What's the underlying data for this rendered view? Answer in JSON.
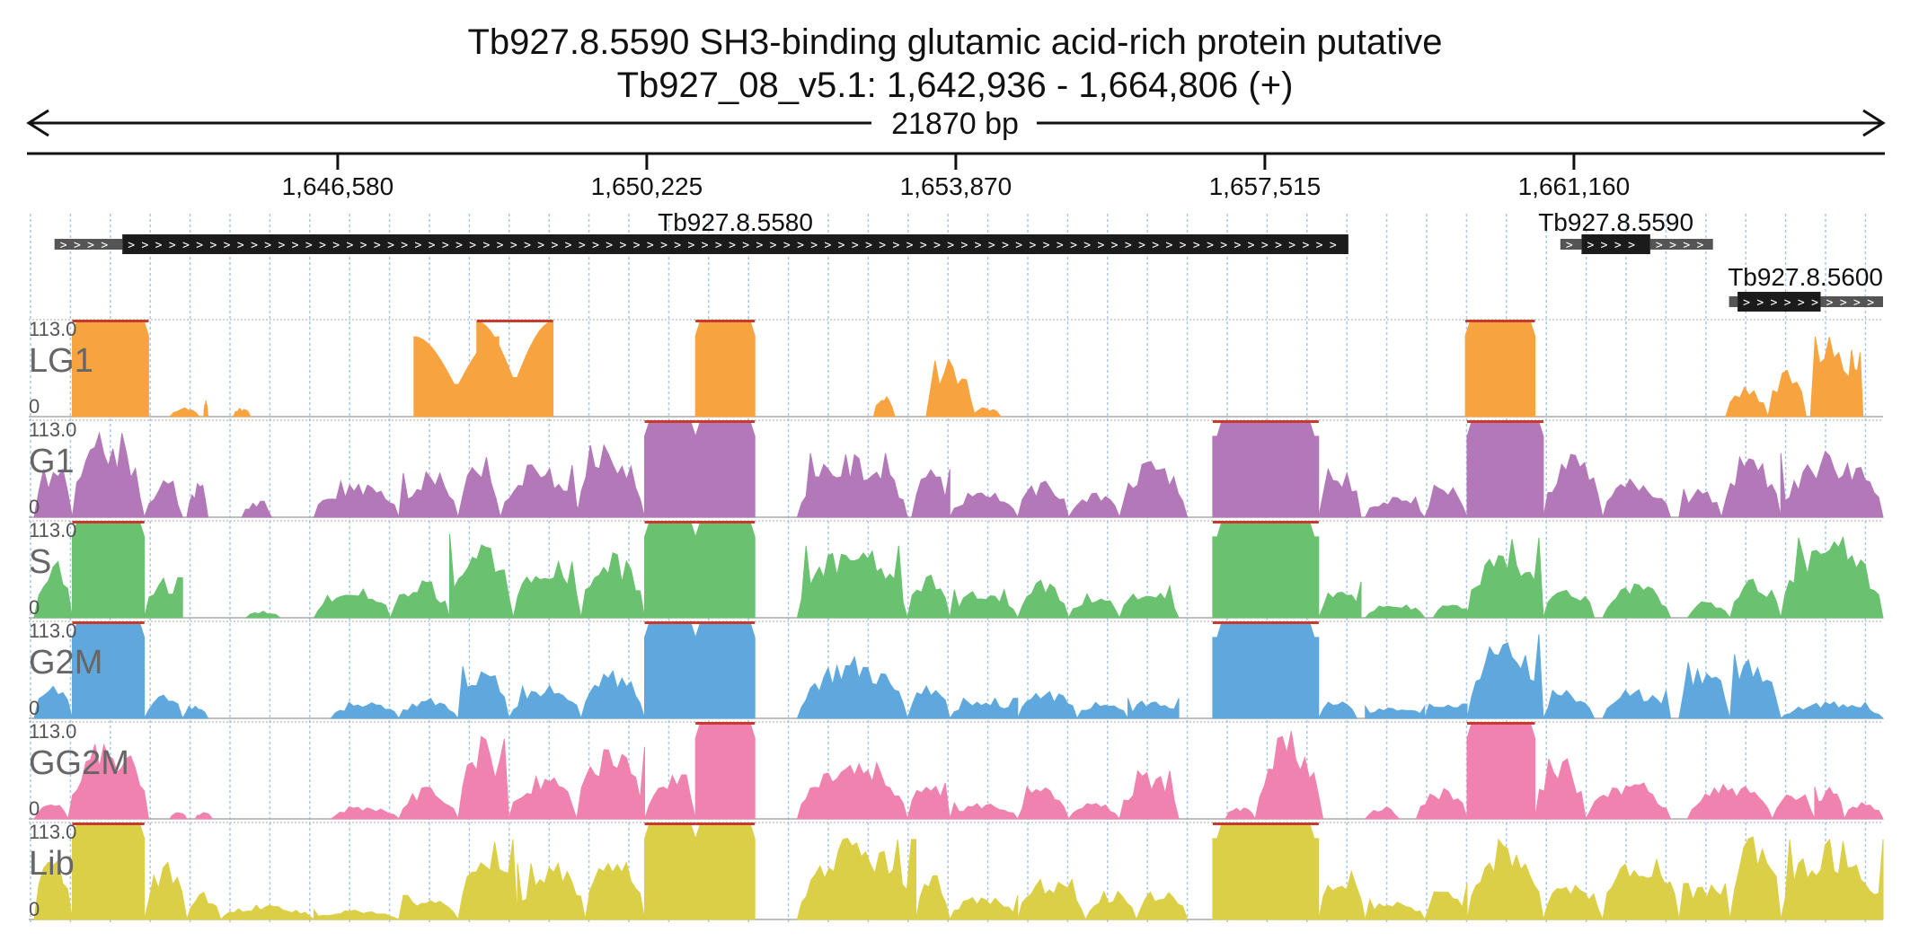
{
  "header": {
    "title_line1": "Tb927.8.5590  SH3-binding  glutamic acid-rich protein  putative",
    "title_line2": "Tb927_08_v5.1: 1,642,936 - 1,664,806 (+)",
    "span_label": "21870 bp"
  },
  "chart_data": {
    "type": "area",
    "title": "Tb927.8.5590  SH3-binding  glutamic acid-rich protein  putative",
    "subtitle": "Tb927_08_v5.1: 1,642,936 - 1,664,806 (+)",
    "xlim": [
      1642936,
      1664806
    ],
    "x_ticks": [
      {
        "value": 1646580,
        "label": "1,646,580"
      },
      {
        "value": 1650225,
        "label": "1,650,225"
      },
      {
        "value": 1653870,
        "label": "1,653,870"
      },
      {
        "value": 1657515,
        "label": "1,657,515"
      },
      {
        "value": 1661160,
        "label": "1,661,160"
      }
    ],
    "genes": [
      {
        "name": "Tb927.8.5580",
        "utr5": [
          1643240,
          1644040
        ],
        "cds": [
          1644040,
          1658500
        ],
        "utr3": null,
        "strand": "+"
      },
      {
        "name": "Tb927.8.5590",
        "utr5": [
          1661000,
          1661250
        ],
        "cds": [
          1661250,
          1662060
        ],
        "utr3": [
          1662060,
          1662800
        ],
        "strand": "+"
      },
      {
        "name": "Tb927.8.5600",
        "utr5": [
          1662990,
          1663090
        ],
        "cds": [
          1663090,
          1664070
        ],
        "utr3": [
          1664070,
          1664806
        ],
        "strand": "+"
      }
    ],
    "ylim": [
      0,
      113.0
    ],
    "y_max_label": "113.0",
    "y_min_label": "0",
    "series": [
      {
        "name": "LG1",
        "color": "#f7a440",
        "peaks": [
          {
            "s": 1643450,
            "e": 1644350,
            "v": 113
          },
          {
            "s": 1644600,
            "e": 1644950,
            "v": 11
          },
          {
            "s": 1645000,
            "e": 1645050,
            "v": 20
          },
          {
            "s": 1645350,
            "e": 1645550,
            "v": 11
          },
          {
            "s": 1647480,
            "e": 1648480,
            "v": 95,
            "shape": "dip"
          },
          {
            "s": 1648220,
            "e": 1649120,
            "v": 113,
            "shape": "dip"
          },
          {
            "s": 1650800,
            "e": 1651500,
            "v": 113
          },
          {
            "s": 1652900,
            "e": 1653150,
            "v": 26
          },
          {
            "s": 1653520,
            "e": 1654100,
            "v": 70
          },
          {
            "s": 1654050,
            "e": 1654400,
            "v": 12
          },
          {
            "s": 1659880,
            "e": 1660700,
            "v": 113
          },
          {
            "s": 1662950,
            "e": 1663450,
            "v": 40
          },
          {
            "s": 1663450,
            "e": 1663900,
            "v": 60
          },
          {
            "s": 1663950,
            "e": 1664450,
            "v": 100
          },
          {
            "s": 1664300,
            "e": 1664570,
            "v": 80
          }
        ]
      },
      {
        "name": "G1",
        "color": "#b278b8",
        "peaks": [
          {
            "s": 1643000,
            "e": 1643450,
            "v": 60
          },
          {
            "s": 1643450,
            "e": 1644300,
            "v": 105
          },
          {
            "s": 1644300,
            "e": 1644750,
            "v": 45
          },
          {
            "s": 1644800,
            "e": 1645050,
            "v": 40
          },
          {
            "s": 1645450,
            "e": 1645800,
            "v": 20
          },
          {
            "s": 1646300,
            "e": 1647300,
            "v": 45
          },
          {
            "s": 1647300,
            "e": 1648000,
            "v": 55
          },
          {
            "s": 1648000,
            "e": 1648500,
            "v": 75
          },
          {
            "s": 1648500,
            "e": 1649450,
            "v": 65
          },
          {
            "s": 1649400,
            "e": 1650200,
            "v": 90
          },
          {
            "s": 1650200,
            "e": 1650800,
            "v": 113
          },
          {
            "s": 1650800,
            "e": 1651500,
            "v": 113
          },
          {
            "s": 1652000,
            "e": 1653300,
            "v": 80
          },
          {
            "s": 1653350,
            "e": 1653800,
            "v": 60
          },
          {
            "s": 1653800,
            "e": 1654600,
            "v": 30
          },
          {
            "s": 1654600,
            "e": 1655200,
            "v": 45
          },
          {
            "s": 1655200,
            "e": 1655800,
            "v": 30
          },
          {
            "s": 1655800,
            "e": 1656600,
            "v": 70
          },
          {
            "s": 1656900,
            "e": 1658150,
            "v": 113
          },
          {
            "s": 1658150,
            "e": 1658650,
            "v": 60
          },
          {
            "s": 1658700,
            "e": 1659400,
            "v": 25
          },
          {
            "s": 1659400,
            "e": 1659900,
            "v": 40
          },
          {
            "s": 1659900,
            "e": 1660800,
            "v": 113
          },
          {
            "s": 1660800,
            "e": 1661500,
            "v": 80
          },
          {
            "s": 1661500,
            "e": 1662300,
            "v": 50
          },
          {
            "s": 1662400,
            "e": 1662900,
            "v": 35
          },
          {
            "s": 1662900,
            "e": 1663600,
            "v": 75
          },
          {
            "s": 1663600,
            "e": 1664806,
            "v": 80
          }
        ]
      },
      {
        "name": "S",
        "color": "#6ac16f",
        "peaks": [
          {
            "s": 1643000,
            "e": 1643450,
            "v": 70
          },
          {
            "s": 1643450,
            "e": 1644300,
            "v": 113
          },
          {
            "s": 1644300,
            "e": 1644750,
            "v": 50
          },
          {
            "s": 1645500,
            "e": 1645900,
            "v": 8
          },
          {
            "s": 1646300,
            "e": 1647200,
            "v": 40
          },
          {
            "s": 1647200,
            "e": 1647900,
            "v": 45
          },
          {
            "s": 1647900,
            "e": 1648650,
            "v": 105
          },
          {
            "s": 1648650,
            "e": 1649450,
            "v": 70
          },
          {
            "s": 1649450,
            "e": 1650200,
            "v": 80
          },
          {
            "s": 1650200,
            "e": 1650800,
            "v": 113
          },
          {
            "s": 1650800,
            "e": 1651500,
            "v": 113
          },
          {
            "s": 1652000,
            "e": 1653300,
            "v": 90
          },
          {
            "s": 1653300,
            "e": 1653800,
            "v": 55
          },
          {
            "s": 1653800,
            "e": 1654600,
            "v": 35
          },
          {
            "s": 1654600,
            "e": 1655200,
            "v": 45
          },
          {
            "s": 1655200,
            "e": 1655800,
            "v": 30
          },
          {
            "s": 1655800,
            "e": 1656500,
            "v": 40
          },
          {
            "s": 1656900,
            "e": 1658150,
            "v": 113
          },
          {
            "s": 1658150,
            "e": 1658650,
            "v": 45
          },
          {
            "s": 1658700,
            "e": 1659400,
            "v": 20
          },
          {
            "s": 1659500,
            "e": 1659950,
            "v": 20
          },
          {
            "s": 1659900,
            "e": 1660800,
            "v": 100
          },
          {
            "s": 1660800,
            "e": 1661400,
            "v": 40
          },
          {
            "s": 1661500,
            "e": 1662300,
            "v": 45
          },
          {
            "s": 1662500,
            "e": 1663000,
            "v": 20
          },
          {
            "s": 1663000,
            "e": 1663600,
            "v": 50
          },
          {
            "s": 1663600,
            "e": 1664806,
            "v": 100
          }
        ]
      },
      {
        "name": "G2M",
        "color": "#5fa8dd",
        "peaks": [
          {
            "s": 1643000,
            "e": 1643450,
            "v": 45
          },
          {
            "s": 1643450,
            "e": 1644300,
            "v": 113
          },
          {
            "s": 1644300,
            "e": 1644750,
            "v": 30
          },
          {
            "s": 1644750,
            "e": 1645050,
            "v": 15
          },
          {
            "s": 1646500,
            "e": 1647300,
            "v": 20
          },
          {
            "s": 1647300,
            "e": 1648000,
            "v": 25
          },
          {
            "s": 1648000,
            "e": 1648600,
            "v": 65
          },
          {
            "s": 1648600,
            "e": 1649450,
            "v": 40
          },
          {
            "s": 1649450,
            "e": 1650200,
            "v": 60
          },
          {
            "s": 1650200,
            "e": 1650800,
            "v": 113
          },
          {
            "s": 1650800,
            "e": 1651500,
            "v": 113
          },
          {
            "s": 1652000,
            "e": 1653300,
            "v": 75
          },
          {
            "s": 1653300,
            "e": 1653800,
            "v": 45
          },
          {
            "s": 1653800,
            "e": 1654600,
            "v": 25
          },
          {
            "s": 1654600,
            "e": 1655300,
            "v": 35
          },
          {
            "s": 1655300,
            "e": 1655900,
            "v": 20
          },
          {
            "s": 1655900,
            "e": 1656500,
            "v": 25
          },
          {
            "s": 1656900,
            "e": 1658150,
            "v": 113
          },
          {
            "s": 1658150,
            "e": 1658600,
            "v": 25
          },
          {
            "s": 1658700,
            "e": 1659400,
            "v": 15
          },
          {
            "s": 1659400,
            "e": 1659900,
            "v": 18
          },
          {
            "s": 1659900,
            "e": 1660800,
            "v": 105
          },
          {
            "s": 1660800,
            "e": 1661400,
            "v": 35
          },
          {
            "s": 1661500,
            "e": 1662300,
            "v": 35
          },
          {
            "s": 1662400,
            "e": 1663000,
            "v": 70
          },
          {
            "s": 1663000,
            "e": 1663600,
            "v": 80
          },
          {
            "s": 1663600,
            "e": 1664806,
            "v": 20
          }
        ]
      },
      {
        "name": "GG2M",
        "color": "#f082b0",
        "peaks": [
          {
            "s": 1643000,
            "e": 1643400,
            "v": 20
          },
          {
            "s": 1643400,
            "e": 1644350,
            "v": 100
          },
          {
            "s": 1644600,
            "e": 1644800,
            "v": 8
          },
          {
            "s": 1644900,
            "e": 1645100,
            "v": 8
          },
          {
            "s": 1646500,
            "e": 1647300,
            "v": 15
          },
          {
            "s": 1647300,
            "e": 1648000,
            "v": 40
          },
          {
            "s": 1648000,
            "e": 1648600,
            "v": 100
          },
          {
            "s": 1648600,
            "e": 1649400,
            "v": 55
          },
          {
            "s": 1649400,
            "e": 1650200,
            "v": 90
          },
          {
            "s": 1650200,
            "e": 1650800,
            "v": 55
          },
          {
            "s": 1650800,
            "e": 1651500,
            "v": 113
          },
          {
            "s": 1652000,
            "e": 1653300,
            "v": 70
          },
          {
            "s": 1653300,
            "e": 1653800,
            "v": 45
          },
          {
            "s": 1653800,
            "e": 1654600,
            "v": 20
          },
          {
            "s": 1654600,
            "e": 1655200,
            "v": 40
          },
          {
            "s": 1655200,
            "e": 1655800,
            "v": 20
          },
          {
            "s": 1655800,
            "e": 1656500,
            "v": 60
          },
          {
            "s": 1657050,
            "e": 1657400,
            "v": 15
          },
          {
            "s": 1657400,
            "e": 1658200,
            "v": 110
          },
          {
            "s": 1658700,
            "e": 1659100,
            "v": 15
          },
          {
            "s": 1659300,
            "e": 1659900,
            "v": 40
          },
          {
            "s": 1659900,
            "e": 1660700,
            "v": 113
          },
          {
            "s": 1660700,
            "e": 1661300,
            "v": 75
          },
          {
            "s": 1661300,
            "e": 1662300,
            "v": 45
          },
          {
            "s": 1662500,
            "e": 1663500,
            "v": 45
          },
          {
            "s": 1663500,
            "e": 1664000,
            "v": 30
          },
          {
            "s": 1664000,
            "e": 1664350,
            "v": 40
          },
          {
            "s": 1664350,
            "e": 1664806,
            "v": 20
          }
        ]
      },
      {
        "name": "Lib",
        "color": "#dccf48",
        "peaks": [
          {
            "s": 1643000,
            "e": 1643450,
            "v": 80
          },
          {
            "s": 1643450,
            "e": 1644300,
            "v": 113
          },
          {
            "s": 1644300,
            "e": 1644800,
            "v": 70
          },
          {
            "s": 1644800,
            "e": 1645200,
            "v": 35
          },
          {
            "s": 1645200,
            "e": 1646300,
            "v": 18
          },
          {
            "s": 1646300,
            "e": 1647300,
            "v": 12
          },
          {
            "s": 1647300,
            "e": 1648000,
            "v": 30
          },
          {
            "s": 1648000,
            "e": 1648700,
            "v": 100
          },
          {
            "s": 1648700,
            "e": 1649500,
            "v": 70
          },
          {
            "s": 1649500,
            "e": 1650200,
            "v": 90
          },
          {
            "s": 1650200,
            "e": 1650800,
            "v": 113
          },
          {
            "s": 1650800,
            "e": 1651500,
            "v": 113
          },
          {
            "s": 1652000,
            "e": 1653400,
            "v": 100
          },
          {
            "s": 1653400,
            "e": 1653800,
            "v": 60
          },
          {
            "s": 1653800,
            "e": 1654600,
            "v": 30
          },
          {
            "s": 1654600,
            "e": 1655400,
            "v": 50
          },
          {
            "s": 1655400,
            "e": 1656000,
            "v": 35
          },
          {
            "s": 1656000,
            "e": 1656600,
            "v": 40
          },
          {
            "s": 1656900,
            "e": 1658150,
            "v": 113
          },
          {
            "s": 1658150,
            "e": 1658700,
            "v": 60
          },
          {
            "s": 1658700,
            "e": 1659400,
            "v": 25
          },
          {
            "s": 1659400,
            "e": 1659900,
            "v": 45
          },
          {
            "s": 1659900,
            "e": 1660800,
            "v": 100
          },
          {
            "s": 1660800,
            "e": 1661500,
            "v": 50
          },
          {
            "s": 1661500,
            "e": 1662400,
            "v": 90
          },
          {
            "s": 1662400,
            "e": 1663000,
            "v": 45
          },
          {
            "s": 1663000,
            "e": 1663600,
            "v": 110
          },
          {
            "s": 1663600,
            "e": 1664806,
            "v": 100
          }
        ]
      }
    ],
    "grid": true,
    "legend": "none"
  }
}
